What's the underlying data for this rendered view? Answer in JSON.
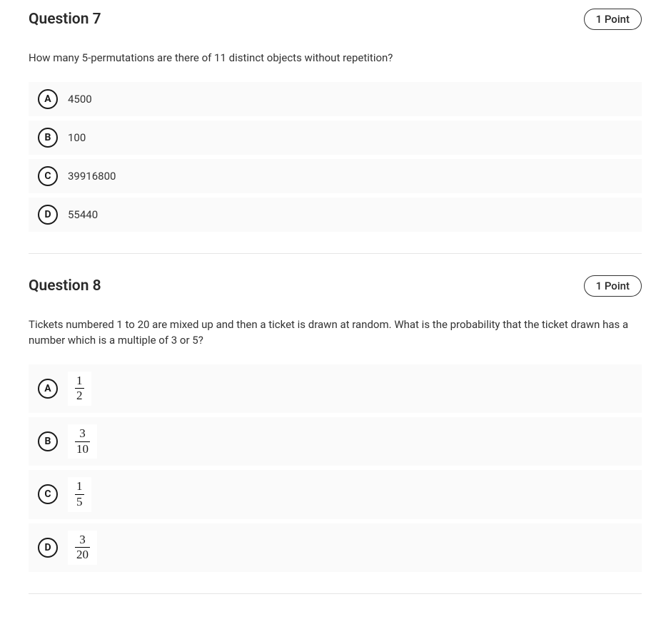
{
  "colors": {
    "text": "#1a1a1a",
    "muted_text": "#333333",
    "answer_bg": "#fafafa",
    "answer_hover_bg": "#f3f3f3",
    "fraction_bg": "#ffffff",
    "divider": "#e5e5e5",
    "pill_border": "#333333"
  },
  "questions": [
    {
      "title": "Question 7",
      "points": "1 Point",
      "prompt": "How many 5-permutations are there of 11 distinct objects without repetition?",
      "answers": [
        {
          "letter": "A",
          "type": "text",
          "text": "4500"
        },
        {
          "letter": "B",
          "type": "text",
          "text": "100"
        },
        {
          "letter": "C",
          "type": "text",
          "text": "39916800"
        },
        {
          "letter": "D",
          "type": "text",
          "text": "55440"
        }
      ]
    },
    {
      "title": "Question 8",
      "points": "1 Point",
      "prompt": "Tickets numbered 1 to 20 are mixed up and then a ticket is drawn at random. What is the probability that the ticket drawn has a number which is a multiple of 3 or 5?",
      "answers": [
        {
          "letter": "A",
          "type": "fraction",
          "num": "1",
          "den": "2"
        },
        {
          "letter": "B",
          "type": "fraction",
          "num": "3",
          "den": "10"
        },
        {
          "letter": "C",
          "type": "fraction",
          "num": "1",
          "den": "5"
        },
        {
          "letter": "D",
          "type": "fraction",
          "num": "3",
          "den": "20"
        }
      ]
    }
  ]
}
